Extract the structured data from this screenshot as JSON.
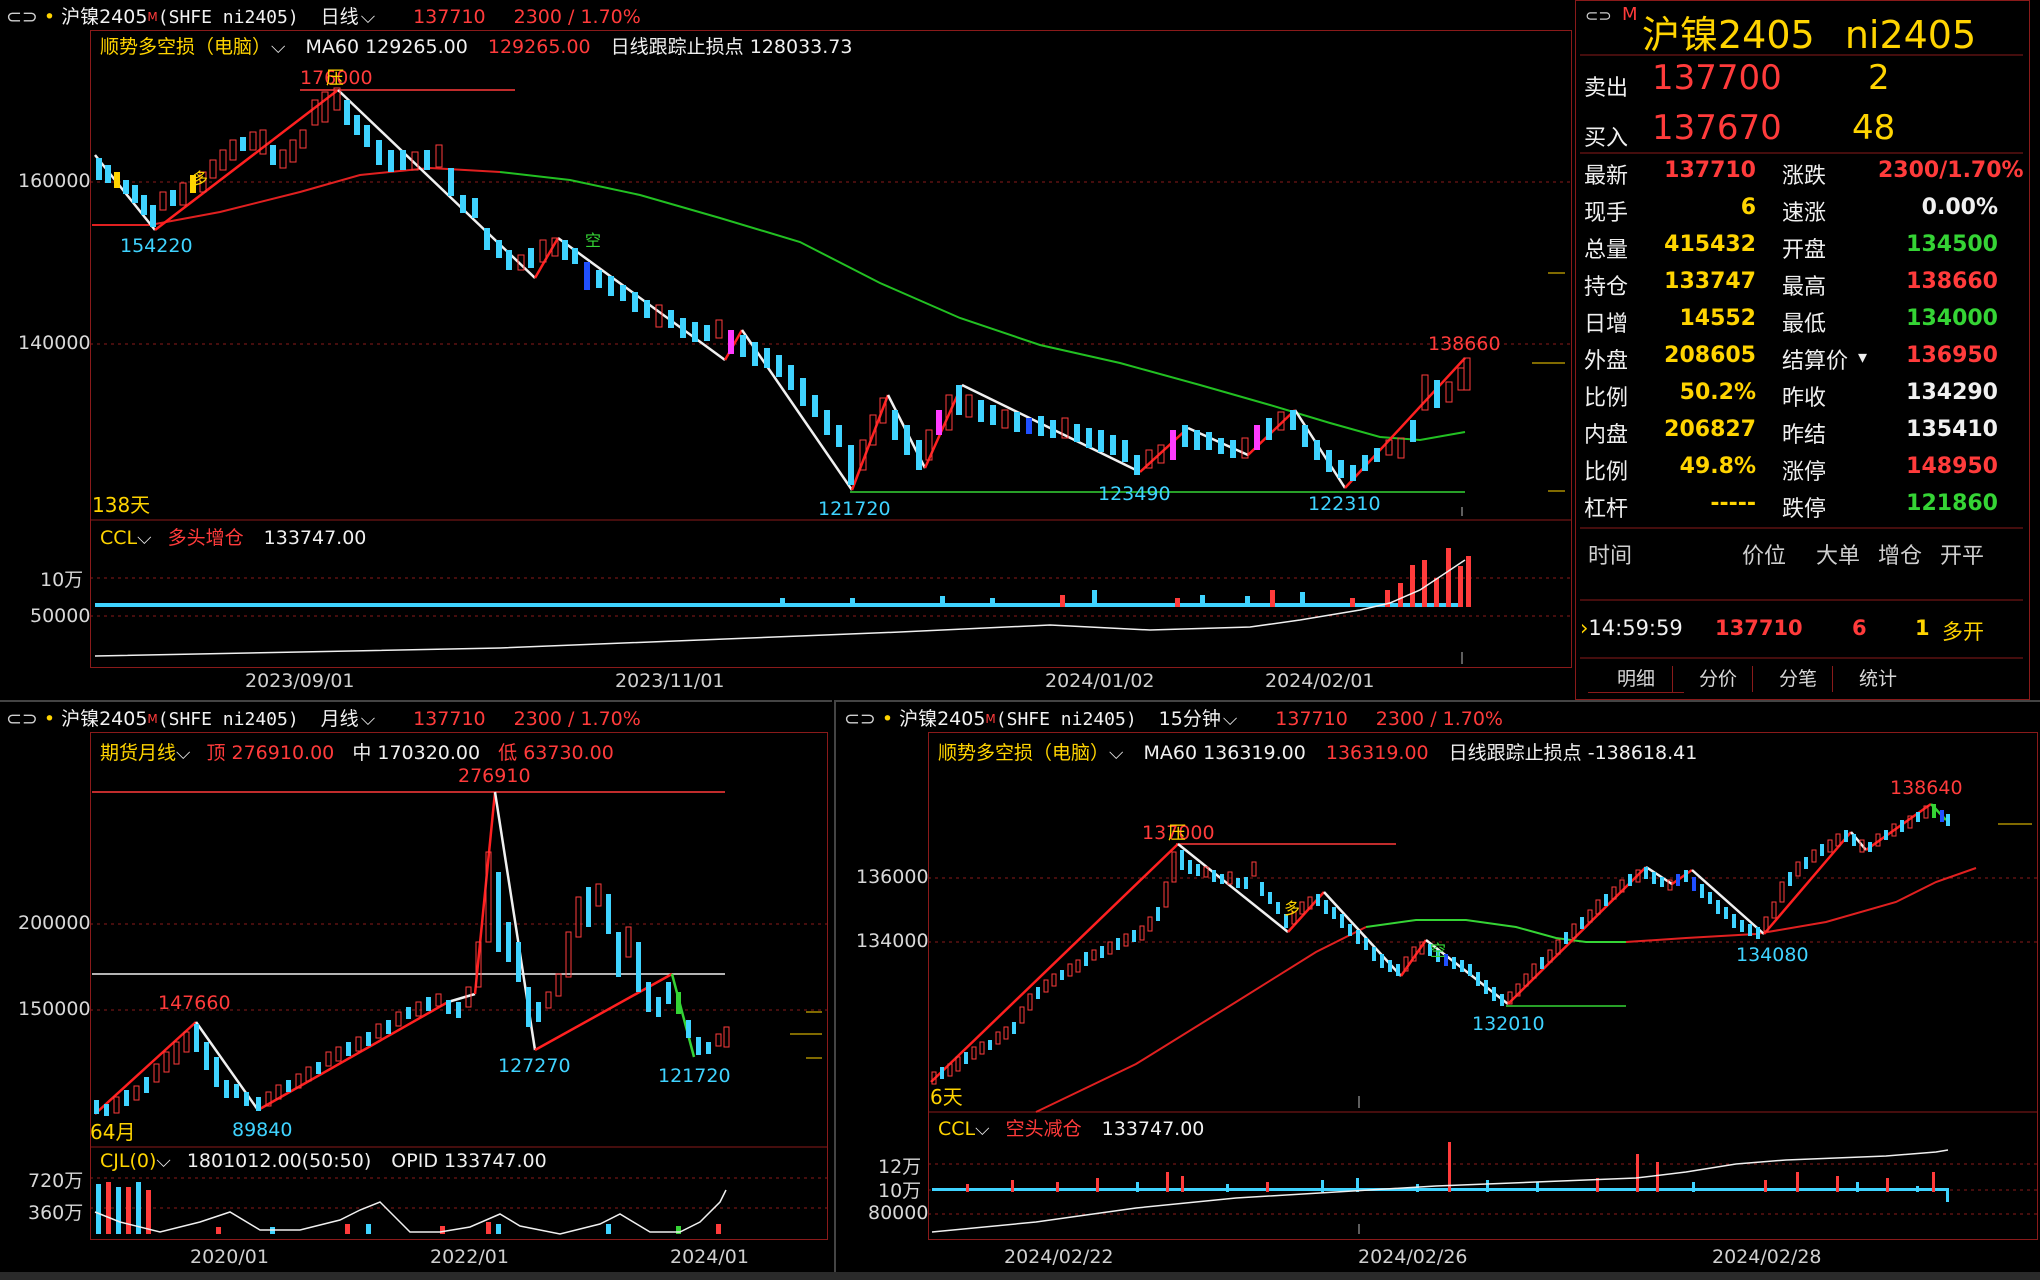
{
  "top_chart": {
    "title": {
      "link_icon": "link-icon",
      "name": "沪镍2405",
      "sup": "M",
      "code": "(SHFE ni2405)",
      "period": "日线",
      "price": "137710",
      "change": "2300 / 1.70%"
    },
    "indicator": {
      "name": "顺势多空损（电脑）",
      "ma": "MA60 129265.00",
      "ma_red": "129265.00",
      "stop": "日线跟踪止损点 128033.73"
    },
    "y_ticks": [
      "160000",
      "140000"
    ],
    "labels": {
      "high": "176000",
      "press": "压",
      "low1": "154220",
      "low2": "121720",
      "low3": "123490",
      "low4": "122310",
      "last_high": "138660",
      "days": "138天",
      "duo": "多",
      "kong": "空"
    },
    "sub_indicator": {
      "name": "CCL",
      "desc": "多头增仓",
      "value": "133747.00"
    },
    "sub_y_ticks": [
      "10万",
      "50000"
    ],
    "x_ticks": [
      "2023/09/01",
      "2023/11/01",
      "2024/01/02",
      "2024/02/01"
    ]
  },
  "quote": {
    "name": "沪镍2405",
    "code": "ni2405",
    "sup": "M",
    "ask": {
      "label": "卖出",
      "price": "137700",
      "vol": "2"
    },
    "bid": {
      "label": "买入",
      "price": "137670",
      "vol": "48"
    },
    "rows": [
      {
        "l1": "最新",
        "v1": "137710",
        "c1": "#ff3b3b",
        "l2": "涨跌",
        "v2": "2300/1.70%",
        "c2": "#ff3b3b"
      },
      {
        "l1": "现手",
        "v1": "6",
        "c1": "#ffd400",
        "l2": "速涨",
        "v2": "0.00%",
        "c2": "#f0f0f0"
      },
      {
        "l1": "总量",
        "v1": "415432",
        "c1": "#ffd400",
        "l2": "开盘",
        "v2": "134500",
        "c2": "#35d435"
      },
      {
        "l1": "持仓",
        "v1": "133747",
        "c1": "#ffd400",
        "l2": "最高",
        "v2": "138660",
        "c2": "#ff3b3b"
      },
      {
        "l1": "日增",
        "v1": "14552",
        "c1": "#ffd400",
        "l2": "最低",
        "v2": "134000",
        "c2": "#35d435"
      },
      {
        "l1": "外盘",
        "v1": "208605",
        "c1": "#ffd400",
        "l2": "结算价",
        "v2": "136950",
        "c2": "#ff3b3b"
      },
      {
        "l1": "比例",
        "v1": "50.2%",
        "c1": "#ffd400",
        "l2": "昨收",
        "v2": "134290",
        "c2": "#f0f0f0"
      },
      {
        "l1": "内盘",
        "v1": "206827",
        "c1": "#ffd400",
        "l2": "昨结",
        "v2": "135410",
        "c2": "#f0f0f0"
      },
      {
        "l1": "比例",
        "v1": "49.8%",
        "c1": "#ffd400",
        "l2": "涨停",
        "v2": "148950",
        "c2": "#ff3b3b"
      },
      {
        "l1": "杠杆",
        "v1": "-----",
        "c1": "#ffd400",
        "l2": "跌停",
        "v2": "121860",
        "c2": "#35d435"
      }
    ],
    "tick_header": [
      "时间",
      "价位",
      "大单",
      "增仓",
      "开平"
    ],
    "tick": {
      "time": "14:59:59",
      "price": "137710",
      "vol": "6",
      "add": "1",
      "type": "多开"
    },
    "tabs": [
      "明细",
      "分价",
      "分笔",
      "统计"
    ]
  },
  "monthly_chart": {
    "title": {
      "name": "沪镍2405",
      "sup": "M",
      "code": "(SHFE ni2405)",
      "period": "月线",
      "price": "137710",
      "change": "2300 / 1.70%"
    },
    "indicator": {
      "name": "期货月线",
      "top": "顶 276910.00",
      "mid": "中 170320.00",
      "low": "低 63730.00"
    },
    "y_ticks": [
      "200000",
      "150000"
    ],
    "labels": {
      "peak": "276910",
      "h1": "147660",
      "l1": "89840",
      "l2": "127270",
      "l3": "121720",
      "months": "64月"
    },
    "sub_indicator": {
      "name": "CJL(0)",
      "value": "1801012.00(50:50)",
      "opid": "OPID 133747.00"
    },
    "sub_y_ticks": [
      "720万",
      "360万"
    ],
    "x_ticks": [
      "2020/01",
      "2022/01",
      "2024/01"
    ]
  },
  "min15_chart": {
    "title": {
      "name": "沪镍2405",
      "sup": "M",
      "code": "(SHFE ni2405)",
      "period": "15分钟",
      "price": "137710",
      "change": "2300 / 1.70%"
    },
    "indicator": {
      "name": "顺势多空损（电脑）",
      "ma": "MA60 136319.00",
      "ma_red": "136319.00",
      "stop": "日线跟踪止损点 -138618.41"
    },
    "y_ticks": [
      "136000",
      "134000"
    ],
    "labels": {
      "high": "137000",
      "press": "压",
      "low1": "132010",
      "low2": "134080",
      "last_high": "138640",
      "days": "6天",
      "duo": "多",
      "kong": "空"
    },
    "sub_indicator": {
      "name": "CCL",
      "desc": "空头减仓",
      "value": "133747.00"
    },
    "sub_y_ticks": [
      "12万",
      "10万",
      "80000"
    ],
    "x_ticks": [
      "2024/02/22",
      "2024/02/26",
      "2024/02/28"
    ]
  }
}
